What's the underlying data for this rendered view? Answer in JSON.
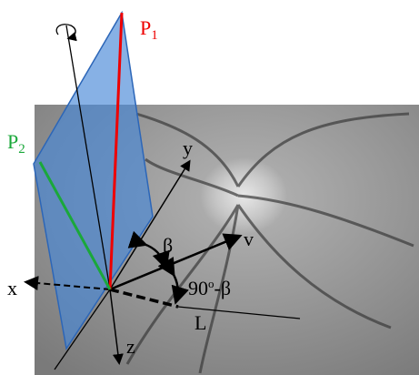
{
  "labels": {
    "p1": {
      "base": "P",
      "sub": "1"
    },
    "p2": {
      "base": "P",
      "sub": "2"
    },
    "x": "x",
    "y": "y",
    "z": "z",
    "v": "v",
    "L": "L",
    "beta": "β",
    "angle": {
      "num": "90",
      "sup": "o",
      "rest": "-β"
    }
  }
}
